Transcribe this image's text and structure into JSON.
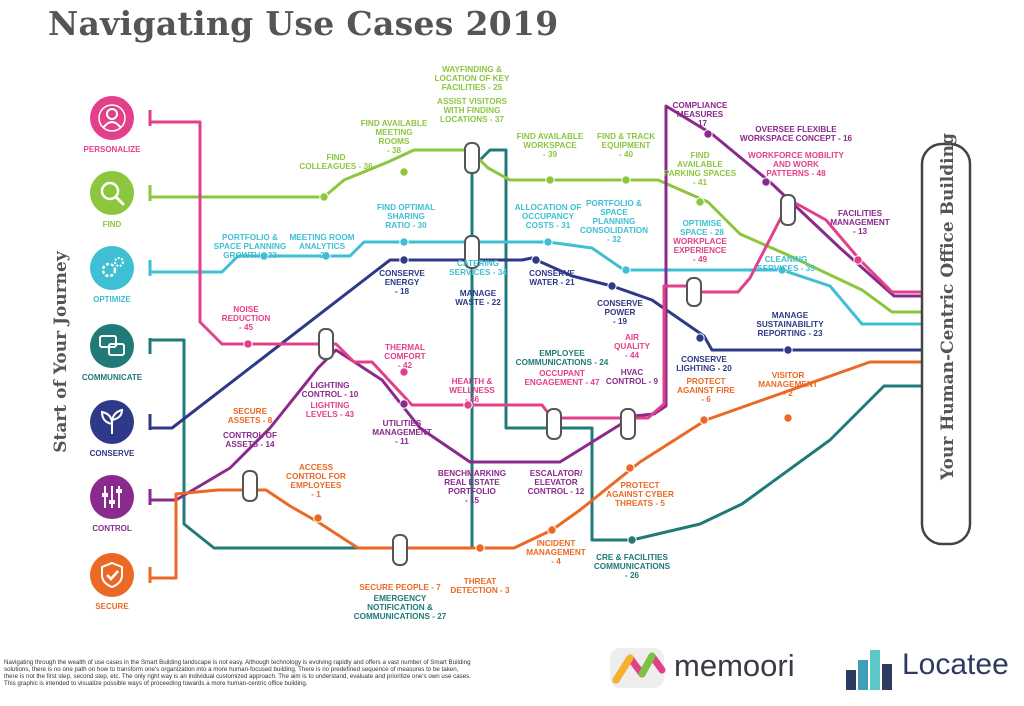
{
  "title": "Navigating Use Cases 2019",
  "start_label": "Start of Your Journey",
  "destination_label": "Your Human-Centric Office Building",
  "footnote": "Navigating through the wealth of use cases in the Smart Building landscape is not easy. Although technology is evolving rapidly and offers a vast number of Smart Building solutions, there is no one path on how to transform one's organization into a more human-focused building. There is no predefined sequence of measures to be taken, there is not the first step, second step, etc. The only right way is an individual customized approach. The aim is to understand, evaluate and prioritize one's own use cases. This graphic is intended to visualize possible ways of proceeding towards a more human-centric office building.",
  "colors": {
    "personalize": "#e2408a",
    "find": "#8cc63f",
    "optimize": "#3fbfd3",
    "communicate": "#1f7a78",
    "conserve": "#2e3a87",
    "control": "#8a2a8c",
    "secure": "#ea6a25"
  },
  "categories": [
    {
      "id": "personalize",
      "label": "PERSONALIZE",
      "icon": "person-icon"
    },
    {
      "id": "find",
      "label": "FIND",
      "icon": "magnifier-icon"
    },
    {
      "id": "optimize",
      "label": "OPTIMIZE",
      "icon": "gears-icon"
    },
    {
      "id": "communicate",
      "label": "COMMUNICATE",
      "icon": "speech-bubbles-icon"
    },
    {
      "id": "conserve",
      "label": "CONSERVE",
      "icon": "plant-icon"
    },
    {
      "id": "control",
      "label": "CONTROL",
      "icon": "sliders-icon"
    },
    {
      "id": "secure",
      "label": "SECURE",
      "icon": "shield-check-icon"
    }
  ],
  "stations": [
    {
      "id": "find-colleagues",
      "line": "find",
      "lines": [
        "FIND",
        "COLLEAGUES - 36"
      ]
    },
    {
      "id": "find-meeting-rooms",
      "line": "find",
      "lines": [
        "FIND AVAILABLE",
        "MEETING",
        "ROOMS",
        "- 38"
      ]
    },
    {
      "id": "wayfinding",
      "line": "find",
      "lines": [
        "WAYFINDING &",
        "LOCATION OF KEY",
        "FACILITIES - 25"
      ]
    },
    {
      "id": "assist-visitors",
      "line": "find",
      "lines": [
        "ASSIST VISITORS",
        "WITH FINDING",
        "LOCATIONS - 37"
      ]
    },
    {
      "id": "find-workspace",
      "line": "find",
      "lines": [
        "FIND AVAILABLE",
        "WORKSPACE",
        "- 39"
      ]
    },
    {
      "id": "find-equipment",
      "line": "find",
      "lines": [
        "FIND & TRACK",
        "EQUIPMENT",
        "- 40"
      ]
    },
    {
      "id": "compliance",
      "line": "control",
      "lines": [
        "COMPLIANCE",
        "MEASURES",
        "- 17"
      ]
    },
    {
      "id": "oversee-flexible",
      "line": "control",
      "lines": [
        "OVERSEE FLEXIBLE",
        "WORKSPACE CONCEPT - 16"
      ]
    },
    {
      "id": "workforce-mobility",
      "line": "personalize",
      "lines": [
        "WORKFORCE MOBILITY",
        "AND WORK",
        "PATTERNS - 48"
      ]
    },
    {
      "id": "find-parking",
      "line": "find",
      "lines": [
        "FIND",
        "AVAILABLE",
        "PARKING SPACES",
        "- 41"
      ]
    },
    {
      "id": "facilities-mgmt",
      "line": "control",
      "lines": [
        "FACILITIES",
        "MANAGEMENT",
        "- 13"
      ]
    },
    {
      "id": "portfolio-growth",
      "line": "optimize",
      "lines": [
        "PORTFOLIO &",
        "SPACE PLANNING",
        "GROWTH - 33"
      ]
    },
    {
      "id": "meeting-analytics",
      "line": "optimize",
      "lines": [
        "MEETING ROOM",
        "ANALYTICS",
        "- 29"
      ]
    },
    {
      "id": "sharing-ratio",
      "line": "optimize",
      "lines": [
        "FIND OPTIMAL",
        "SHARING",
        "RATIO - 30"
      ]
    },
    {
      "id": "allocation",
      "line": "optimize",
      "lines": [
        "ALLOCATION OF",
        "OCCUPANCY",
        "COSTS - 31"
      ]
    },
    {
      "id": "consolidation",
      "line": "optimize",
      "lines": [
        "PORTFOLIO &",
        "SPACE",
        "PLANNING",
        "CONSOLIDATION",
        "- 32"
      ]
    },
    {
      "id": "optimise-space",
      "line": "optimize",
      "lines": [
        "OPTIMISE",
        "SPACE - 28"
      ]
    },
    {
      "id": "workplace-experience",
      "line": "personalize",
      "lines": [
        "WORKPLACE",
        "EXPERIENCE",
        "- 49"
      ]
    },
    {
      "id": "cleaning",
      "line": "optimize",
      "lines": [
        "CLEANING",
        "SERVICES - 35"
      ]
    },
    {
      "id": "conserve-energy",
      "line": "conserve",
      "lines": [
        "CONSERVE",
        "ENERGY",
        "- 18"
      ]
    },
    {
      "id": "catering",
      "line": "optimize",
      "lines": [
        "CATERING",
        "SERVICES - 34"
      ]
    },
    {
      "id": "manage-waste",
      "line": "conserve",
      "lines": [
        "MANAGE",
        "WASTE - 22"
      ]
    },
    {
      "id": "conserve-water",
      "line": "conserve",
      "lines": [
        "CONSERVE",
        "WATER - 21"
      ]
    },
    {
      "id": "conserve-power",
      "line": "conserve",
      "lines": [
        "CONSERVE",
        "POWER",
        "- 19"
      ]
    },
    {
      "id": "conserve-lighting",
      "line": "conserve",
      "lines": [
        "CONSERVE",
        "LIGHTING - 20"
      ]
    },
    {
      "id": "sustainability",
      "line": "conserve",
      "lines": [
        "MANAGE",
        "SUSTAINABILITY",
        "REPORTING - 23"
      ]
    },
    {
      "id": "noise",
      "line": "personalize",
      "lines": [
        "NOISE",
        "REDUCTION",
        "- 45"
      ]
    },
    {
      "id": "thermal",
      "line": "personalize",
      "lines": [
        "THERMAL",
        "COMFORT",
        "- 42"
      ]
    },
    {
      "id": "lighting-control",
      "line": "control",
      "lines": [
        "LIGHTING",
        "CONTROL - 10"
      ]
    },
    {
      "id": "lighting-levels",
      "line": "personalize",
      "lines": [
        "LIGHTING",
        "LEVELS - 43"
      ]
    },
    {
      "id": "health",
      "line": "personalize",
      "lines": [
        "HEALTH &",
        "WELLNESS",
        "- 46"
      ]
    },
    {
      "id": "employee-comms",
      "line": "communicate",
      "lines": [
        "EMPLOYEE",
        "COMMUNICATIONS - 24"
      ]
    },
    {
      "id": "occupant-engagement",
      "line": "personalize",
      "lines": [
        "OCCUPANT",
        "ENGAGEMENT - 47"
      ]
    },
    {
      "id": "air-quality",
      "line": "personalize",
      "lines": [
        "AIR",
        "QUALITY",
        "- 44"
      ]
    },
    {
      "id": "hvac",
      "line": "control",
      "lines": [
        "HVAC",
        "CONTROL - 9"
      ]
    },
    {
      "id": "protect-fire",
      "line": "secure",
      "lines": [
        "PROTECT",
        "AGAINST FIRE",
        "- 6"
      ]
    },
    {
      "id": "visitor-mgmt",
      "line": "secure",
      "lines": [
        "VISITOR",
        "MANAGEMENT",
        "- 2"
      ]
    },
    {
      "id": "secure-assets",
      "line": "secure",
      "lines": [
        "SECURE",
        "ASSETS - 8"
      ]
    },
    {
      "id": "control-assets",
      "line": "control",
      "lines": [
        "CONTROL OF",
        "ASSETS - 14"
      ]
    },
    {
      "id": "utilities",
      "line": "control",
      "lines": [
        "UTILITIES",
        "MANAGEMENT",
        "- 11"
      ]
    },
    {
      "id": "benchmarking",
      "line": "control",
      "lines": [
        "BENCHMARKING",
        "REAL ESTATE",
        "PORTFOLIO",
        "- 15"
      ]
    },
    {
      "id": "escalator",
      "line": "control",
      "lines": [
        "ESCALATOR/",
        "ELEVATOR",
        "CONTROL - 12"
      ]
    },
    {
      "id": "protect-cyber",
      "line": "secure",
      "lines": [
        "PROTECT",
        "AGAINST CYBER",
        "THREATS - 5"
      ]
    },
    {
      "id": "access-control",
      "line": "secure",
      "lines": [
        "ACCESS",
        "CONTROL FOR",
        "EMPLOYEES",
        "- 1"
      ]
    },
    {
      "id": "incident",
      "line": "secure",
      "lines": [
        "INCIDENT",
        "MANAGEMENT",
        "- 4"
      ]
    },
    {
      "id": "cre-comms",
      "line": "communicate",
      "lines": [
        "CRE & FACILITIES",
        "COMMUNICATIONS",
        "- 26"
      ]
    },
    {
      "id": "secure-people",
      "line": "secure",
      "lines": [
        "SECURE PEOPLE - 7"
      ]
    },
    {
      "id": "emergency",
      "line": "communicate",
      "lines": [
        "EMERGENCY",
        "NOTIFICATION &",
        "COMMUNICATIONS - 27"
      ]
    },
    {
      "id": "threat",
      "line": "secure",
      "lines": [
        "THREAT",
        "DETECTION - 3"
      ]
    }
  ],
  "logos": {
    "memoori": {
      "text": "memoori",
      "icon": "memoori-logo-icon"
    },
    "locatee": {
      "text": "Locatee",
      "icon": "locatee-logo-icon"
    }
  }
}
